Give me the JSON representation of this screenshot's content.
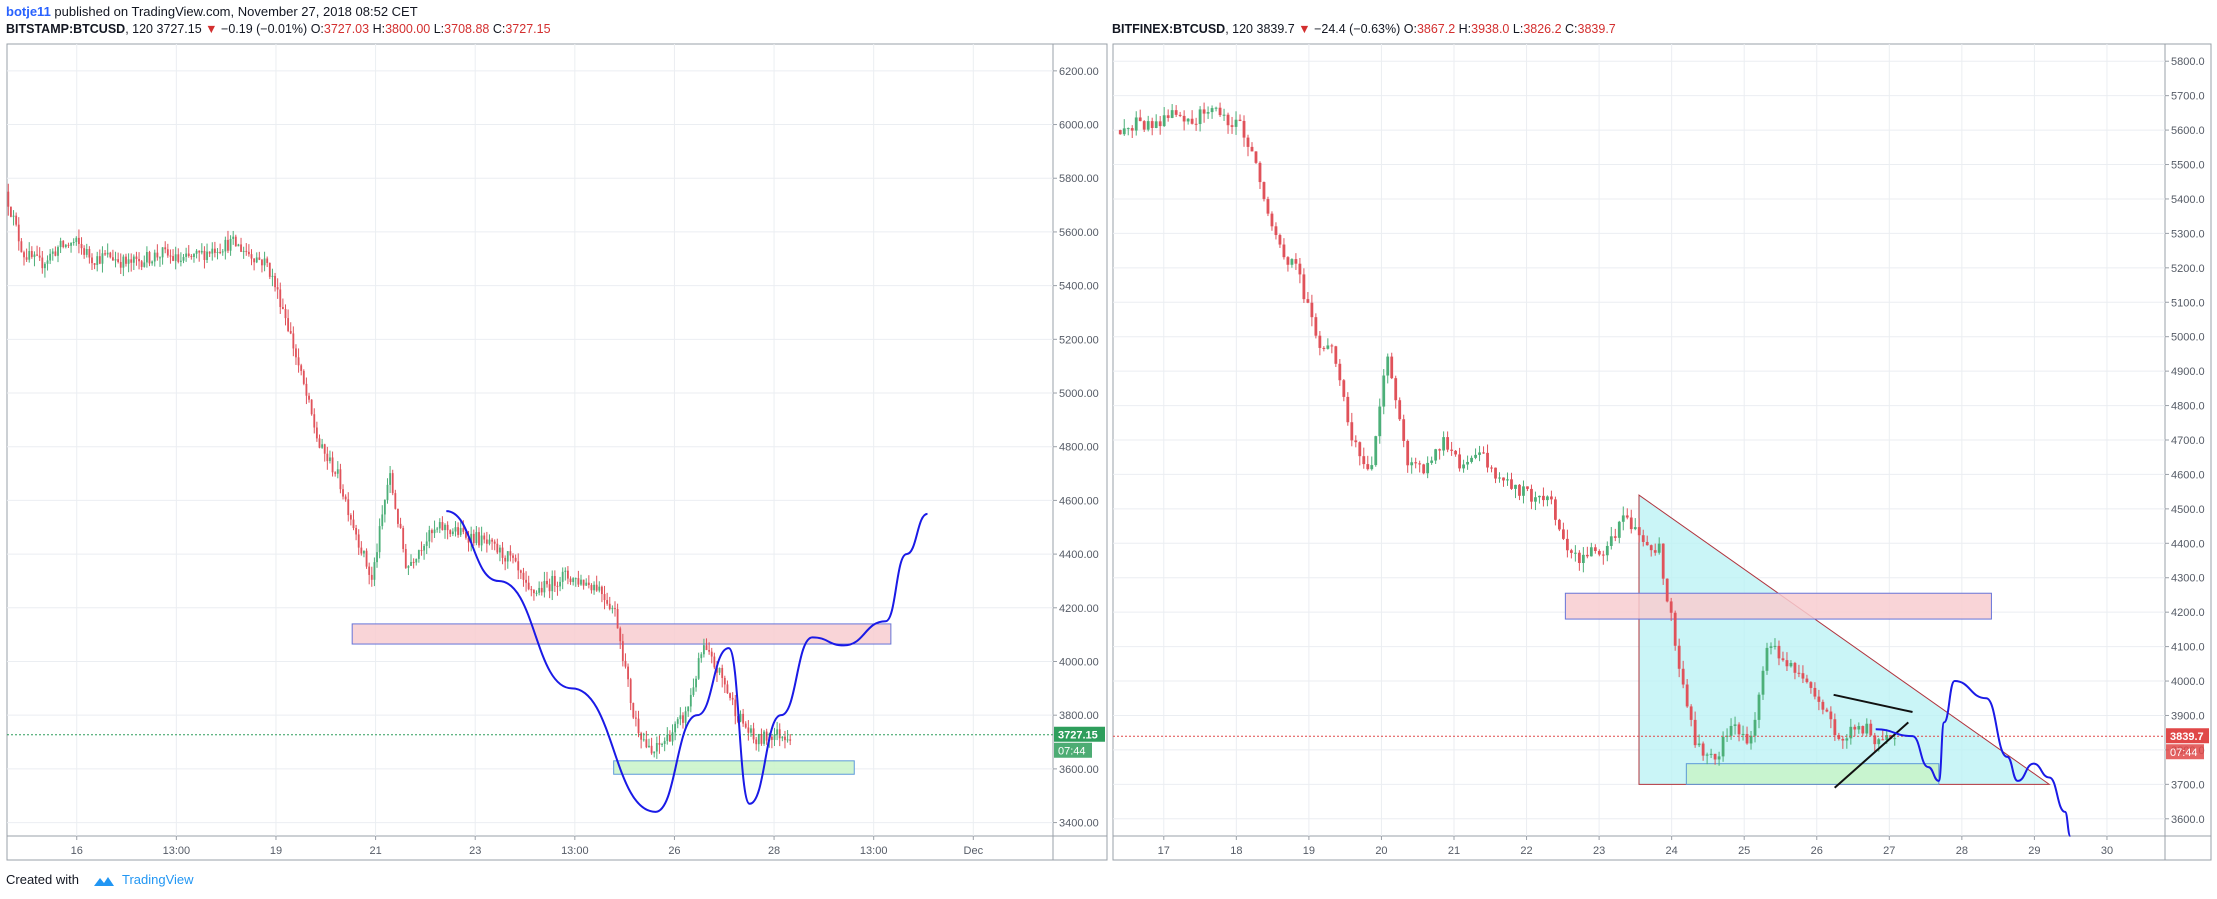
{
  "header": {
    "author": "botje11",
    "published_text": " published on TradingView.com, November 27, 2018 08:52 CET"
  },
  "colors": {
    "up": "#4caf78",
    "down": "#e0525a",
    "grid": "#ebeef2",
    "axis_text": "#555b66",
    "price_line_left": "#2e9e5c",
    "price_line_right": "#e04848"
  },
  "footer": {
    "created_with": "Created with",
    "brand": "TradingView",
    "logo_icon": "tradingview-logo-icon"
  },
  "chart_data": [
    {
      "type": "candlestick",
      "symbol": "BITSTAMP:BTCUSD",
      "interval": "120",
      "last": "3727.15",
      "change": "−0.19 (−0.01%)",
      "o": "3727.03",
      "h": "3800.00",
      "l": "3708.88",
      "c": "3727.15",
      "ylim": [
        3350,
        6300
      ],
      "y_ticks": [
        "6200.00",
        "6000.00",
        "5800.00",
        "5600.00",
        "5400.00",
        "5200.00",
        "5000.00",
        "4800.00",
        "4600.00",
        "4400.00",
        "4200.00",
        "4000.00",
        "3800.00",
        "3600.00",
        "3400.00"
      ],
      "x_ticks": [
        "16",
        "13:00",
        "19",
        "21",
        "23",
        "13:00",
        "26",
        "28",
        "13:00",
        "Dec"
      ],
      "price_label": "3727.15",
      "countdown_label": "07:44",
      "price_path": [
        [
          0,
          5750
        ],
        [
          1,
          5520
        ],
        [
          2,
          5480
        ],
        [
          3,
          5540
        ],
        [
          4,
          5560
        ],
        [
          5,
          5500
        ],
        [
          6,
          5510
        ],
        [
          7,
          5480
        ],
        [
          8,
          5500
        ],
        [
          9,
          5520
        ],
        [
          10,
          5490
        ],
        [
          11,
          5510
        ],
        [
          12,
          5540
        ],
        [
          13,
          5560
        ],
        [
          14,
          5520
        ],
        [
          15,
          5480
        ],
        [
          16,
          5300
        ],
        [
          17,
          5050
        ],
        [
          18,
          4800
        ],
        [
          19,
          4700
        ],
        [
          20,
          4500
        ],
        [
          21,
          4300
        ],
        [
          22,
          4700
        ],
        [
          23,
          4350
        ],
        [
          24,
          4450
        ],
        [
          25,
          4500
        ],
        [
          26,
          4480
        ],
        [
          27,
          4460
        ],
        [
          28,
          4420
        ],
        [
          29,
          4380
        ],
        [
          30,
          4250
        ],
        [
          31,
          4280
        ],
        [
          32,
          4320
        ],
        [
          33,
          4300
        ],
        [
          34,
          4280
        ],
        [
          35,
          4180
        ],
        [
          36,
          3800
        ],
        [
          37,
          3650
        ],
        [
          38,
          3720
        ],
        [
          39,
          3800
        ],
        [
          40,
          4050
        ],
        [
          41,
          3950
        ],
        [
          42,
          3800
        ],
        [
          43,
          3700
        ],
        [
          44,
          3730
        ],
        [
          45,
          3727
        ]
      ],
      "zones": [
        {
          "name": "resistance-zone",
          "from": 4065,
          "to": 4140,
          "x0": 0.33,
          "x1": 0.845,
          "fill": "#f8cdd0",
          "stroke": "#6674d8"
        },
        {
          "name": "support-zone",
          "from": 3580,
          "to": 3630,
          "x0": 0.58,
          "x1": 0.81,
          "fill": "#c8f3c8",
          "stroke": "#5c9ad8"
        }
      ],
      "projection": [
        [
          0.42,
          4560
        ],
        [
          0.47,
          4300
        ],
        [
          0.54,
          3900
        ],
        [
          0.62,
          3440
        ],
        [
          0.66,
          3800
        ],
        [
          0.69,
          4050
        ],
        [
          0.71,
          3470
        ],
        [
          0.74,
          3800
        ],
        [
          0.77,
          4090
        ],
        [
          0.8,
          4060
        ],
        [
          0.84,
          4150
        ],
        [
          0.86,
          4400
        ],
        [
          0.88,
          4550
        ]
      ]
    },
    {
      "type": "candlestick",
      "symbol": "BITFINEX:BTCUSD",
      "interval": "120",
      "last": "3839.7",
      "change": "−24.4 (−0.63%)",
      "o": "3867.2",
      "h": "3938.0",
      "l": "3826.2",
      "c": "3839.7",
      "ylim": [
        3550,
        5850
      ],
      "y_ticks": [
        "5800.0",
        "5700.0",
        "5600.0",
        "5500.0",
        "5400.0",
        "5300.0",
        "5200.0",
        "5100.0",
        "5000.0",
        "4900.0",
        "4800.0",
        "4700.0",
        "4600.0",
        "4500.0",
        "4400.0",
        "4300.0",
        "4200.0",
        "4100.0",
        "4000.0",
        "3900.0",
        "3800.0",
        "3700.0",
        "3600.0"
      ],
      "x_ticks": [
        "17",
        "18",
        "19",
        "20",
        "21",
        "22",
        "23",
        "24",
        "25",
        "26",
        "27",
        "28",
        "29",
        "30"
      ],
      "price_label": "3839.7",
      "countdown_label": "07:44",
      "price_path": [
        [
          0,
          5600
        ],
        [
          1,
          5620
        ],
        [
          2,
          5610
        ],
        [
          3,
          5640
        ],
        [
          4,
          5620
        ],
        [
          5,
          5660
        ],
        [
          6,
          5640
        ],
        [
          7,
          5600
        ],
        [
          8,
          5450
        ],
        [
          9,
          5250
        ],
        [
          10,
          5200
        ],
        [
          11,
          5000
        ],
        [
          12,
          4950
        ],
        [
          13,
          4700
        ],
        [
          14,
          4600
        ],
        [
          15,
          4950
        ],
        [
          16,
          4650
        ],
        [
          17,
          4600
        ],
        [
          18,
          4700
        ],
        [
          19,
          4620
        ],
        [
          20,
          4680
        ],
        [
          21,
          4600
        ],
        [
          22,
          4560
        ],
        [
          23,
          4540
        ],
        [
          24,
          4520
        ],
        [
          25,
          4350
        ],
        [
          26,
          4370
        ],
        [
          27,
          4380
        ],
        [
          28,
          4480
        ],
        [
          29,
          4420
        ],
        [
          30,
          4380
        ],
        [
          31,
          4080
        ],
        [
          32,
          3820
        ],
        [
          33,
          3760
        ],
        [
          34,
          3890
        ],
        [
          35,
          3810
        ],
        [
          36,
          4120
        ],
        [
          37,
          4050
        ],
        [
          38,
          4010
        ],
        [
          39,
          3920
        ],
        [
          40,
          3830
        ],
        [
          41,
          3880
        ],
        [
          42,
          3830
        ],
        [
          43,
          3840
        ]
      ],
      "zones": [
        {
          "name": "resistance-zone",
          "from": 4180,
          "to": 4255,
          "x0": 0.43,
          "x1": 0.835,
          "fill": "#f8cdd0",
          "stroke": "#6674d8"
        },
        {
          "name": "support-zone",
          "from": 3700,
          "to": 3760,
          "x0": 0.545,
          "x1": 0.785,
          "fill": "#c8f3c8",
          "stroke": "#5c9ad8"
        }
      ],
      "triangle": {
        "top": [
          0.5,
          4540
        ],
        "bottom_left": [
          0.5,
          3700
        ],
        "bottom_right": [
          0.89,
          3700
        ],
        "fill": "#b8f2f4",
        "stroke": "#b0343e"
      },
      "black_lines": [
        [
          [
            0.685,
            3960
          ],
          [
            0.76,
            3910
          ]
        ],
        [
          [
            0.686,
            3690
          ],
          [
            0.756,
            3880
          ]
        ]
      ],
      "projection": [
        [
          0.725,
          3860
        ],
        [
          0.76,
          3840
        ],
        [
          0.775,
          3750
        ],
        [
          0.785,
          3710
        ],
        [
          0.79,
          3880
        ],
        [
          0.8,
          4000
        ],
        [
          0.83,
          3950
        ],
        [
          0.85,
          3780
        ],
        [
          0.86,
          3710
        ],
        [
          0.875,
          3760
        ],
        [
          0.89,
          3720
        ],
        [
          0.905,
          3620
        ],
        [
          0.91,
          3550
        ]
      ]
    }
  ]
}
